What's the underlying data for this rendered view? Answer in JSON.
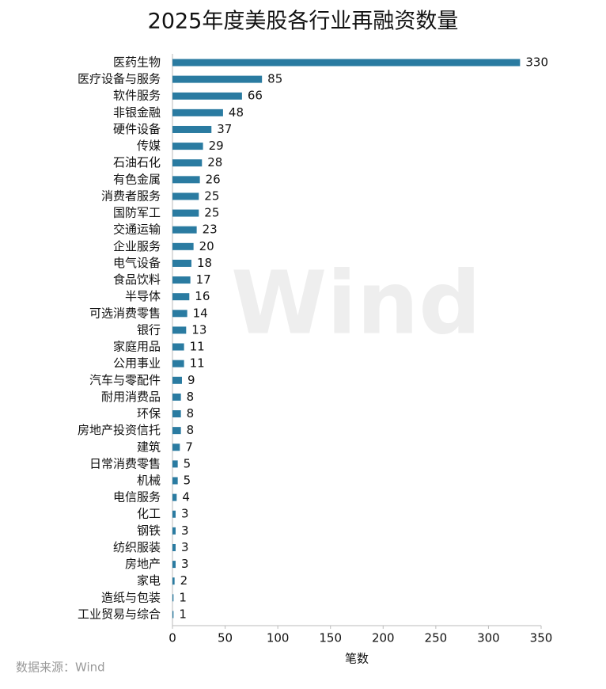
{
  "chart_data": {
    "type": "bar",
    "orientation": "horizontal",
    "title": "2025年度美股各行业再融资数量",
    "x_label": "笔数",
    "source": "数据来源：Wind",
    "watermark": "Wind",
    "color": "#2a7ba1",
    "categories": [
      "医药生物",
      "医疗设备与服务",
      "软件服务",
      "非银金融",
      "硬件设备",
      "传媒",
      "石油石化",
      "有色金属",
      "消费者服务",
      "国防军工",
      "交通运输",
      "企业服务",
      "电气设备",
      "食品饮料",
      "半导体",
      "可选消费零售",
      "银行",
      "家庭用品",
      "公用事业",
      "汽车与零配件",
      "耐用消费品",
      "环保",
      "房地产投资信托",
      "建筑",
      "日常消费零售",
      "机械",
      "电信服务",
      "化工",
      "钢铁",
      "纺织服装",
      "房地产",
      "家电",
      "造纸与包装",
      "工业贸易与综合"
    ],
    "values": [
      330,
      85,
      66,
      48,
      37,
      29,
      28,
      26,
      25,
      25,
      23,
      20,
      18,
      17,
      16,
      14,
      13,
      11,
      11,
      9,
      8,
      8,
      8,
      7,
      5,
      5,
      4,
      3,
      3,
      3,
      3,
      2,
      1,
      1
    ],
    "xlim": [
      0,
      350
    ],
    "xticks": [
      0,
      50,
      100,
      150,
      200,
      250,
      300,
      350
    ]
  }
}
